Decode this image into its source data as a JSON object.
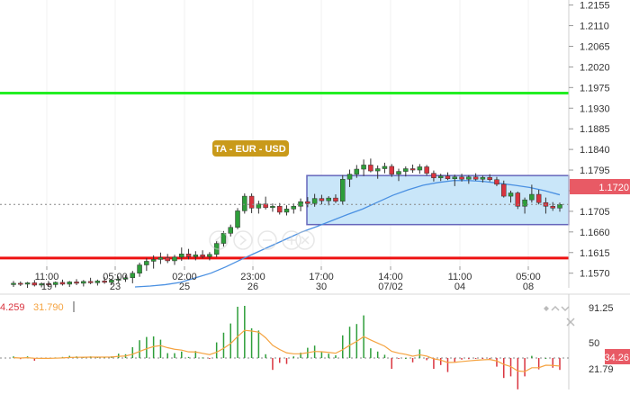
{
  "symbol_label": "TA - EUR - USD",
  "price_axis": {
    "ticks": [
      "1.2155",
      "1.2110",
      "1.2065",
      "1.2020",
      "1.1975",
      "1.1930",
      "1.1885",
      "1.1840",
      "1.1795",
      "1.1750",
      "1.1705",
      "1.1660",
      "1.1615",
      "1.1570"
    ],
    "current_price": "1.1720",
    "min": 1.1538,
    "max": 1.2166
  },
  "time_axis": [
    {
      "time": "11:00",
      "date": "19"
    },
    {
      "time": "05:00",
      "date": "23"
    },
    {
      "time": "02:00",
      "date": "25"
    },
    {
      "time": "23:00",
      "date": "26"
    },
    {
      "time": "17:00",
      "date": "30"
    },
    {
      "time": "14:00",
      "date": "07/02"
    },
    {
      "time": "11:00",
      "date": "04"
    },
    {
      "time": "05:00",
      "date": "08"
    }
  ],
  "indicator": {
    "value_1": "4.259",
    "value_2": "31.790",
    "axis_ticks": [
      "91.25",
      "50",
      "21.79"
    ],
    "current_value": "34.26"
  },
  "levels": {
    "green_line": 1.1963,
    "red_line": 1.1603
  },
  "channel": {
    "top": 1.1783,
    "bottom": 1.1676
  },
  "colors": {
    "up_candle": "#2e9e3a",
    "down_candle": "#d9343f",
    "green_line": "#22ee22",
    "red_line": "#ee1111",
    "channel_fill": "#c9e6f9",
    "channel_border": "#6666bb",
    "ma_line": "#4a90e2",
    "price_tag": "#e85a65",
    "symbol_tag": "#c99a1a",
    "osc_line": "#f5a340",
    "osc_up_bar": "#2e9e3a",
    "osc_down_bar": "#d9343f"
  },
  "icons": [
    "arrow-left-icon",
    "arrow-right-icon",
    "zoom-out-icon",
    "zoom-in-icon",
    "close-icon"
  ],
  "panel_icons": [
    "diamond-icon",
    "chevron-up-icon",
    "chevron-down-icon",
    "close-icon"
  ],
  "chart_data": {
    "type": "candlestick",
    "series": [
      {
        "name": "EUR/USD",
        "values": [
          [
            1.1545,
            1.1553,
            1.154,
            1.1548
          ],
          [
            1.1548,
            1.1552,
            1.1542,
            1.1546
          ],
          [
            1.1546,
            1.1551,
            1.1538,
            1.1549
          ],
          [
            1.1549,
            1.1555,
            1.1541,
            1.1544
          ],
          [
            1.1544,
            1.155,
            1.1539,
            1.1547
          ],
          [
            1.1547,
            1.1553,
            1.154,
            1.1545
          ],
          [
            1.1545,
            1.1552,
            1.1539,
            1.155
          ],
          [
            1.155,
            1.1556,
            1.1543,
            1.1546
          ],
          [
            1.1546,
            1.1553,
            1.154,
            1.1551
          ],
          [
            1.1551,
            1.1557,
            1.1544,
            1.1548
          ],
          [
            1.1548,
            1.1555,
            1.1541,
            1.1552
          ],
          [
            1.1552,
            1.156,
            1.1546,
            1.1549
          ],
          [
            1.1549,
            1.1556,
            1.1543,
            1.1553
          ],
          [
            1.1553,
            1.1561,
            1.1547,
            1.155
          ],
          [
            1.155,
            1.1558,
            1.1544,
            1.1555
          ],
          [
            1.1555,
            1.1563,
            1.1549,
            1.1557
          ],
          [
            1.1557,
            1.1566,
            1.1551,
            1.156
          ],
          [
            1.156,
            1.1575,
            1.1548,
            1.157
          ],
          [
            1.157,
            1.1593,
            1.1562,
            1.1588
          ],
          [
            1.1588,
            1.1603,
            1.1575,
            1.1596
          ],
          [
            1.1596,
            1.1609,
            1.158,
            1.16
          ],
          [
            1.16,
            1.1615,
            1.159,
            1.1604
          ],
          [
            1.1604,
            1.1612,
            1.1592,
            1.1597
          ],
          [
            1.1597,
            1.161,
            1.1588,
            1.1605
          ],
          [
            1.1605,
            1.1626,
            1.1597,
            1.1612
          ],
          [
            1.1612,
            1.1623,
            1.16,
            1.1606
          ],
          [
            1.1606,
            1.1618,
            1.1598,
            1.161
          ],
          [
            1.161,
            1.162,
            1.1602,
            1.1606
          ],
          [
            1.1606,
            1.1616,
            1.1598,
            1.1611
          ],
          [
            1.1611,
            1.164,
            1.1605,
            1.1635
          ],
          [
            1.1635,
            1.1662,
            1.1628,
            1.1657
          ],
          [
            1.1657,
            1.1676,
            1.165,
            1.167
          ],
          [
            1.167,
            1.1712,
            1.1666,
            1.1706
          ],
          [
            1.1706,
            1.1744,
            1.17,
            1.1738
          ],
          [
            1.1738,
            1.1744,
            1.1701,
            1.1712
          ],
          [
            1.1712,
            1.1728,
            1.17,
            1.1721
          ],
          [
            1.1721,
            1.1737,
            1.1709,
            1.1713
          ],
          [
            1.1713,
            1.1722,
            1.1704,
            1.1716
          ],
          [
            1.1716,
            1.1723,
            1.1698,
            1.1703
          ],
          [
            1.1703,
            1.1718,
            1.1696,
            1.171
          ],
          [
            1.171,
            1.1722,
            1.17,
            1.1716
          ],
          [
            1.1716,
            1.1733,
            1.1705,
            1.1726
          ],
          [
            1.1726,
            1.1736,
            1.1714,
            1.1722
          ],
          [
            1.1722,
            1.1743,
            1.1715,
            1.1733
          ],
          [
            1.1733,
            1.1741,
            1.172,
            1.1728
          ],
          [
            1.1728,
            1.1738,
            1.1718,
            1.1734
          ],
          [
            1.1734,
            1.1742,
            1.1723,
            1.1727
          ],
          [
            1.1727,
            1.1784,
            1.172,
            1.1775
          ],
          [
            1.1775,
            1.1796,
            1.1758,
            1.1786
          ],
          [
            1.1786,
            1.1806,
            1.1778,
            1.1797
          ],
          [
            1.1797,
            1.1818,
            1.1782,
            1.1806
          ],
          [
            1.1806,
            1.182,
            1.179,
            1.1793
          ],
          [
            1.1793,
            1.1805,
            1.1776,
            1.1798
          ],
          [
            1.1798,
            1.1811,
            1.1788,
            1.1803
          ],
          [
            1.1803,
            1.1808,
            1.178,
            1.1786
          ],
          [
            1.1786,
            1.1798,
            1.1771,
            1.1792
          ],
          [
            1.1792,
            1.1803,
            1.1781,
            1.1798
          ],
          [
            1.1798,
            1.1807,
            1.1789,
            1.1795
          ],
          [
            1.1795,
            1.1808,
            1.1787,
            1.1802
          ],
          [
            1.1802,
            1.1806,
            1.1783,
            1.1788
          ],
          [
            1.1788,
            1.1794,
            1.177,
            1.1778
          ],
          [
            1.1778,
            1.1787,
            1.1771,
            1.1782
          ],
          [
            1.1782,
            1.179,
            1.1773,
            1.1776
          ],
          [
            1.1776,
            1.1785,
            1.176,
            1.178
          ],
          [
            1.178,
            1.1787,
            1.177,
            1.1775
          ],
          [
            1.1775,
            1.1784,
            1.1765,
            1.178
          ],
          [
            1.178,
            1.1788,
            1.1772,
            1.1775
          ],
          [
            1.1775,
            1.1783,
            1.1768,
            1.1779
          ],
          [
            1.1779,
            1.1786,
            1.177,
            1.1774
          ],
          [
            1.1774,
            1.178,
            1.176,
            1.1764
          ],
          [
            1.1764,
            1.1772,
            1.1735,
            1.1738
          ],
          [
            1.1738,
            1.175,
            1.1724,
            1.1745
          ],
          [
            1.1745,
            1.1748,
            1.171,
            1.1716
          ],
          [
            1.1716,
            1.1735,
            1.17,
            1.173
          ],
          [
            1.173,
            1.1763,
            1.1724,
            1.1742
          ],
          [
            1.1742,
            1.1752,
            1.172,
            1.1724
          ],
          [
            1.1724,
            1.1735,
            1.17,
            1.1716
          ],
          [
            1.1716,
            1.1725,
            1.1706,
            1.1712
          ],
          [
            1.1712,
            1.1724,
            1.1704,
            1.172
          ]
        ]
      },
      {
        "name": "MA",
        "values": [
          1.154,
          1.1542,
          1.1545,
          1.155,
          1.156,
          1.157,
          1.1584,
          1.16,
          1.1615,
          1.163,
          1.1645,
          1.166,
          1.1672,
          1.1685,
          1.1698,
          1.171,
          1.1725,
          1.174,
          1.1752,
          1.1762,
          1.1768,
          1.1772,
          1.1772,
          1.177,
          1.1766,
          1.1762,
          1.1757,
          1.175,
          1.1741
        ]
      }
    ]
  }
}
